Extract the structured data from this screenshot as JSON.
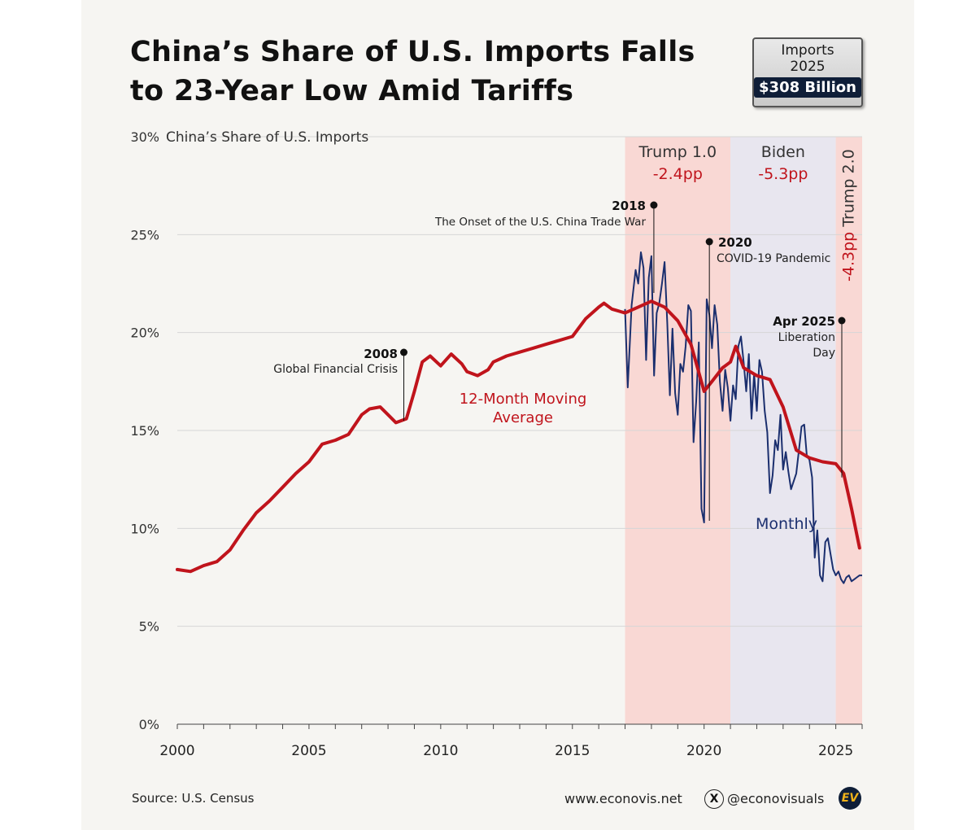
{
  "title_line1": "China’s Share of U.S. Imports Falls",
  "title_line2": "to 23-Year Low Amid Tariffs",
  "badge": {
    "line1": "Imports",
    "line2": "2025",
    "value": "$308 Billion"
  },
  "footer": {
    "source": "Source: U.S. Census",
    "website": "www.econovis.net",
    "handle": "@econovisuals",
    "x_logo": "X",
    "logo": "EV"
  },
  "colors": {
    "moving_avg": "#c0141c",
    "monthly": "#1b2f6e",
    "trump_shade": "#f9d8d4",
    "biden_shade": "#e8e6ef"
  },
  "chart_data": {
    "type": "line",
    "title": "China’s Share of U.S. Imports Falls to 23-Year Low Amid Tariffs",
    "ylabel": "China’s Share of U.S. Imports",
    "xlim": [
      2000,
      2026
    ],
    "ylim": [
      0,
      30
    ],
    "x_ticks": [
      2000,
      2005,
      2010,
      2015,
      2020,
      2025
    ],
    "y_ticks": [
      0,
      5,
      10,
      15,
      20,
      25,
      30
    ],
    "y_tick_labels": [
      "0%",
      "5%",
      "10%",
      "15%",
      "20%",
      "25%",
      "30%"
    ],
    "periods": [
      {
        "name": "Trump 1.0",
        "change": "-2.4pp",
        "start": 2017,
        "end": 2021
      },
      {
        "name": "Biden",
        "change": "-5.3pp",
        "start": 2021,
        "end": 2025
      },
      {
        "name": "Trump 2.0",
        "change": "-4.3pp",
        "start": 2025,
        "end": 2026
      }
    ],
    "series": [
      {
        "name": "12-Month Moving Average",
        "label_line1": "12-Month Moving",
        "label_line2": "Average",
        "x": [
          2000,
          2000.5,
          2001,
          2001.5,
          2002,
          2002.5,
          2003,
          2003.5,
          2004,
          2004.5,
          2005,
          2005.5,
          2006,
          2006.5,
          2007,
          2007.3,
          2007.7,
          2008,
          2008.3,
          2008.7,
          2009,
          2009.3,
          2009.6,
          2010,
          2010.4,
          2010.8,
          2011,
          2011.4,
          2011.8,
          2012,
          2012.5,
          2013,
          2013.5,
          2014,
          2014.5,
          2015,
          2015.5,
          2016,
          2016.2,
          2016.5,
          2017,
          2017.5,
          2018,
          2018.5,
          2019,
          2019.5,
          2020,
          2020.3,
          2020.7,
          2021,
          2021.2,
          2021.5,
          2022,
          2022.5,
          2023,
          2023.5,
          2024,
          2024.5,
          2025,
          2025.3,
          2025.6,
          2025.9
        ],
        "y": [
          7.9,
          7.8,
          8.1,
          8.3,
          8.9,
          9.9,
          10.8,
          11.4,
          12.1,
          12.8,
          13.4,
          14.3,
          14.5,
          14.8,
          15.8,
          16.1,
          16.2,
          15.8,
          15.4,
          15.6,
          17.0,
          18.5,
          18.8,
          18.3,
          18.9,
          18.4,
          18.0,
          17.8,
          18.1,
          18.5,
          18.8,
          19.0,
          19.2,
          19.4,
          19.6,
          19.8,
          20.7,
          21.3,
          21.5,
          21.2,
          21.0,
          21.3,
          21.6,
          21.3,
          20.6,
          19.4,
          17.0,
          17.5,
          18.2,
          18.5,
          19.3,
          18.2,
          17.8,
          17.6,
          16.2,
          14.0,
          13.6,
          13.4,
          13.3,
          12.8,
          11.0,
          9.0
        ]
      },
      {
        "name": "Monthly",
        "label": "Monthly",
        "x": [
          2017.0,
          2017.1,
          2017.25,
          2017.4,
          2017.5,
          2017.6,
          2017.7,
          2017.8,
          2017.9,
          2018.0,
          2018.1,
          2018.2,
          2018.3,
          2018.4,
          2018.5,
          2018.6,
          2018.7,
          2018.8,
          2018.9,
          2019.0,
          2019.1,
          2019.2,
          2019.3,
          2019.4,
          2019.5,
          2019.6,
          2019.7,
          2019.8,
          2019.9,
          2020.0,
          2020.1,
          2020.2,
          2020.3,
          2020.4,
          2020.5,
          2020.6,
          2020.7,
          2020.8,
          2020.9,
          2021.0,
          2021.1,
          2021.2,
          2021.3,
          2021.4,
          2021.5,
          2021.6,
          2021.7,
          2021.8,
          2021.9,
          2022.0,
          2022.1,
          2022.2,
          2022.3,
          2022.4,
          2022.5,
          2022.6,
          2022.7,
          2022.8,
          2022.9,
          2023.0,
          2023.1,
          2023.2,
          2023.3,
          2023.4,
          2023.5,
          2023.6,
          2023.7,
          2023.8,
          2023.9,
          2024.0,
          2024.1,
          2024.2,
          2024.3,
          2024.4,
          2024.5,
          2024.6,
          2024.7,
          2024.8,
          2024.9,
          2025.0,
          2025.1,
          2025.2,
          2025.3,
          2025.4,
          2025.5,
          2025.6,
          2025.7,
          2025.8,
          2025.9,
          2026.0
        ],
        "y": [
          21.2,
          17.2,
          21.4,
          23.2,
          22.5,
          24.1,
          23.3,
          18.6,
          22.8,
          23.9,
          17.8,
          21.0,
          21.5,
          22.5,
          23.6,
          20.5,
          16.8,
          20.2,
          16.9,
          15.8,
          18.4,
          18.0,
          19.3,
          21.4,
          21.1,
          14.4,
          16.5,
          19.5,
          11.0,
          10.3,
          21.7,
          20.9,
          19.2,
          21.4,
          20.4,
          17.5,
          16.0,
          18.1,
          17.2,
          15.5,
          17.3,
          16.6,
          19.3,
          19.8,
          18.5,
          17.0,
          18.9,
          15.6,
          17.9,
          16.0,
          18.6,
          18.0,
          16.0,
          14.9,
          11.8,
          12.7,
          14.5,
          14.0,
          15.8,
          13.0,
          13.9,
          12.9,
          12.0,
          12.4,
          12.8,
          14.0,
          15.2,
          15.3,
          13.7,
          13.5,
          12.6,
          8.5,
          9.9,
          7.6,
          7.3,
          9.3,
          9.5,
          8.7,
          7.9,
          7.6,
          7.8,
          7.4,
          7.2,
          7.5,
          7.6,
          7.3,
          7.4,
          7.5,
          7.6,
          7.6
        ]
      }
    ],
    "annotations": [
      {
        "year_label": "2008",
        "text": "Global Financial Crisis",
        "x": 2008.6,
        "y": 15.5
      },
      {
        "year_label": "2018",
        "text": "The Onset of the U.S. China Trade War",
        "x": 2018.0,
        "y": 21.6
      },
      {
        "year_label": "2020",
        "text": "COVID-19 Pandemic",
        "x": 2020.2,
        "y": 17.0
      },
      {
        "year_label": "Apr 2025",
        "text_line1": "Liberation",
        "text_line2": "Day",
        "x": 2025.2,
        "y": 12.6
      }
    ]
  }
}
